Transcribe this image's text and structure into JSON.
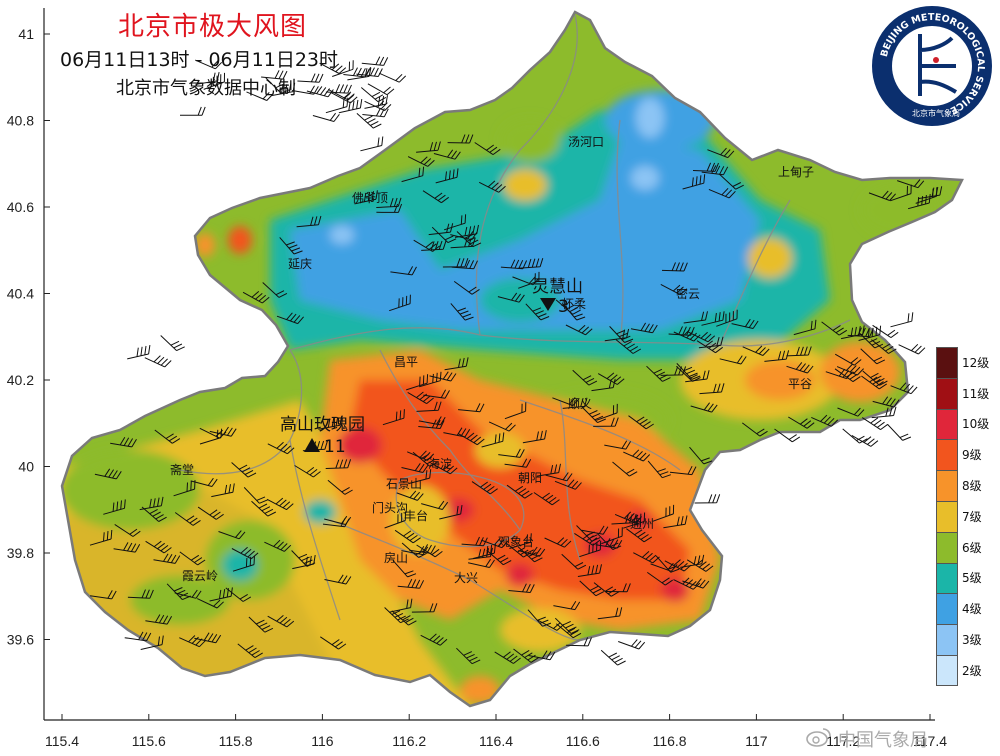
{
  "title": "北京市极大风图",
  "time_range": "06月11日13时  -  06月11日23时",
  "producer": "北京市气象数据中心制",
  "axes": {
    "x_ticks": [
      "115.4",
      "115.6",
      "115.8",
      "116",
      "116.2",
      "116.4",
      "116.6",
      "116.8",
      "117",
      "117.2",
      "117.4"
    ],
    "y_ticks": [
      "41",
      "40.8",
      "40.6",
      "40.4",
      "40.2",
      "40",
      "39.8",
      "39.6"
    ]
  },
  "legend": {
    "items": [
      {
        "label": "12级",
        "color": "#5a1010"
      },
      {
        "label": "11级",
        "color": "#a00f14"
      },
      {
        "label": "10级",
        "color": "#e0263a"
      },
      {
        "label": "9级",
        "color": "#f2551e"
      },
      {
        "label": "8级",
        "color": "#f7932a"
      },
      {
        "label": "7级",
        "color": "#e8be2a"
      },
      {
        "label": "6级",
        "color": "#8dbb2c"
      },
      {
        "label": "5级",
        "color": "#1bb5a8"
      },
      {
        "label": "4级",
        "color": "#3fa1e3"
      },
      {
        "label": "3级",
        "color": "#8cc4f4"
      },
      {
        "label": "2级",
        "color": "#cbe6fb"
      }
    ]
  },
  "places": [
    {
      "name": "汤河口"
    },
    {
      "name": "上甸子"
    },
    {
      "name": "佛爷顶"
    },
    {
      "name": "延庆"
    },
    {
      "name": "密云"
    },
    {
      "name": "昌平"
    },
    {
      "name": "顺义"
    },
    {
      "name": "平谷"
    },
    {
      "name": "斋堂"
    },
    {
      "name": "海淀"
    },
    {
      "name": "朝阳"
    },
    {
      "name": "石景山"
    },
    {
      "name": "丰台"
    },
    {
      "name": "门头沟"
    },
    {
      "name": "观象台"
    },
    {
      "name": "房山"
    },
    {
      "name": "通州"
    },
    {
      "name": "大兴"
    },
    {
      "name": "霞云岭"
    },
    {
      "name": "怀柔"
    }
  ],
  "highlights": {
    "max_station": "高山玫瑰园",
    "max_value": "11",
    "min_station": "灵慧山",
    "min_value": "3"
  },
  "logo": {
    "ring_text": "BEIJING METEOROLOGICAL SERVICE",
    "bottom_text": "北京市气象局"
  },
  "watermark": "中国气象局"
}
